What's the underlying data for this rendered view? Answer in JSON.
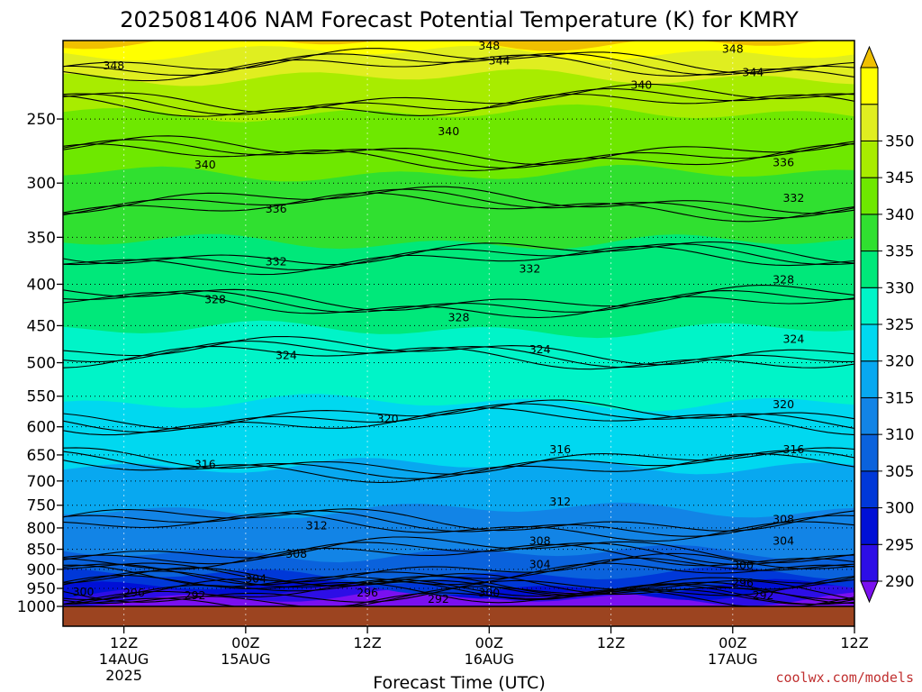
{
  "chart_data": {
    "type": "contour",
    "title": "2025081406 NAM Forecast Potential Temperature (K) for KMRY",
    "xlabel": "Forecast Time (UTC)",
    "ylabel": "",
    "credit": "coolwx.com/models",
    "y_axis": {
      "unit": "hPa",
      "scale": "log",
      "range": [
        1000,
        200
      ],
      "ticks": [
        250,
        300,
        350,
        400,
        450,
        500,
        550,
        600,
        650,
        700,
        750,
        800,
        850,
        900,
        950,
        1000
      ]
    },
    "x_axis": {
      "range_hours": [
        6,
        84
      ],
      "ticks": [
        {
          "hour": 12,
          "line1": "12Z",
          "line2": "14AUG",
          "line3": "2025"
        },
        {
          "hour": 24,
          "line1": "00Z",
          "line2": "15AUG",
          "line3": ""
        },
        {
          "hour": 36,
          "line1": "12Z",
          "line2": "",
          "line3": ""
        },
        {
          "hour": 48,
          "line1": "00Z",
          "line2": "16AUG",
          "line3": ""
        },
        {
          "hour": 60,
          "line1": "12Z",
          "line2": "",
          "line3": ""
        },
        {
          "hour": 72,
          "line1": "00Z",
          "line2": "17AUG",
          "line3": ""
        },
        {
          "hour": 84,
          "line1": "12Z",
          "line2": "",
          "line3": ""
        }
      ]
    },
    "colorbar": {
      "ticks": [
        290,
        295,
        300,
        305,
        310,
        315,
        320,
        325,
        330,
        335,
        340,
        345,
        350
      ],
      "colors": [
        "#7a10f0",
        "#2d0ee6",
        "#0010d6",
        "#0038d8",
        "#0a62dc",
        "#1284e6",
        "#08a8f0",
        "#00d8f0",
        "#00f4c8",
        "#00e87a",
        "#30e030",
        "#6ee800",
        "#a8ec00",
        "#e0ee20",
        "#ffff00",
        "#f0c000"
      ]
    },
    "contour_levels": [
      292,
      296,
      300,
      304,
      308,
      312,
      316,
      320,
      324,
      328,
      332,
      336,
      340,
      344,
      348
    ],
    "contour_labels": [
      {
        "value": "348",
        "hour": 11,
        "p": 215
      },
      {
        "value": "348",
        "hour": 48,
        "p": 203
      },
      {
        "value": "348",
        "hour": 72,
        "p": 205
      },
      {
        "value": "344",
        "hour": 49,
        "p": 212
      },
      {
        "value": "344",
        "hour": 74,
        "p": 219
      },
      {
        "value": "340",
        "hour": 20,
        "p": 285
      },
      {
        "value": "340",
        "hour": 44,
        "p": 259
      },
      {
        "value": "340",
        "hour": 63,
        "p": 227
      },
      {
        "value": "336",
        "hour": 27,
        "p": 323
      },
      {
        "value": "336",
        "hour": 77,
        "p": 283
      },
      {
        "value": "332",
        "hour": 27,
        "p": 375
      },
      {
        "value": "332",
        "hour": 52,
        "p": 383
      },
      {
        "value": "332",
        "hour": 78,
        "p": 313
      },
      {
        "value": "328",
        "hour": 21,
        "p": 418
      },
      {
        "value": "328",
        "hour": 45,
        "p": 440
      },
      {
        "value": "328",
        "hour": 77,
        "p": 395
      },
      {
        "value": "324",
        "hour": 28,
        "p": 490
      },
      {
        "value": "324",
        "hour": 53,
        "p": 482
      },
      {
        "value": "324",
        "hour": 78,
        "p": 468
      },
      {
        "value": "320",
        "hour": 38,
        "p": 587
      },
      {
        "value": "320",
        "hour": 77,
        "p": 563
      },
      {
        "value": "316",
        "hour": 20,
        "p": 668
      },
      {
        "value": "316",
        "hour": 55,
        "p": 640
      },
      {
        "value": "316",
        "hour": 78,
        "p": 640
      },
      {
        "value": "312",
        "hour": 31,
        "p": 795
      },
      {
        "value": "312",
        "hour": 55,
        "p": 743
      },
      {
        "value": "308",
        "hour": 29,
        "p": 862
      },
      {
        "value": "308",
        "hour": 53,
        "p": 830
      },
      {
        "value": "308",
        "hour": 77,
        "p": 781
      },
      {
        "value": "304",
        "hour": 25,
        "p": 925
      },
      {
        "value": "304",
        "hour": 53,
        "p": 888
      },
      {
        "value": "304",
        "hour": 77,
        "p": 830
      },
      {
        "value": "300",
        "hour": 8,
        "p": 960
      },
      {
        "value": "300",
        "hour": 48,
        "p": 962
      },
      {
        "value": "300",
        "hour": 73,
        "p": 890
      },
      {
        "value": "296",
        "hour": 13,
        "p": 962
      },
      {
        "value": "296",
        "hour": 36,
        "p": 962
      },
      {
        "value": "296",
        "hour": 73,
        "p": 935
      },
      {
        "value": "292",
        "hour": 19,
        "p": 970
      },
      {
        "value": "292",
        "hour": 43,
        "p": 980
      },
      {
        "value": "292",
        "hour": 75,
        "p": 970
      }
    ]
  }
}
